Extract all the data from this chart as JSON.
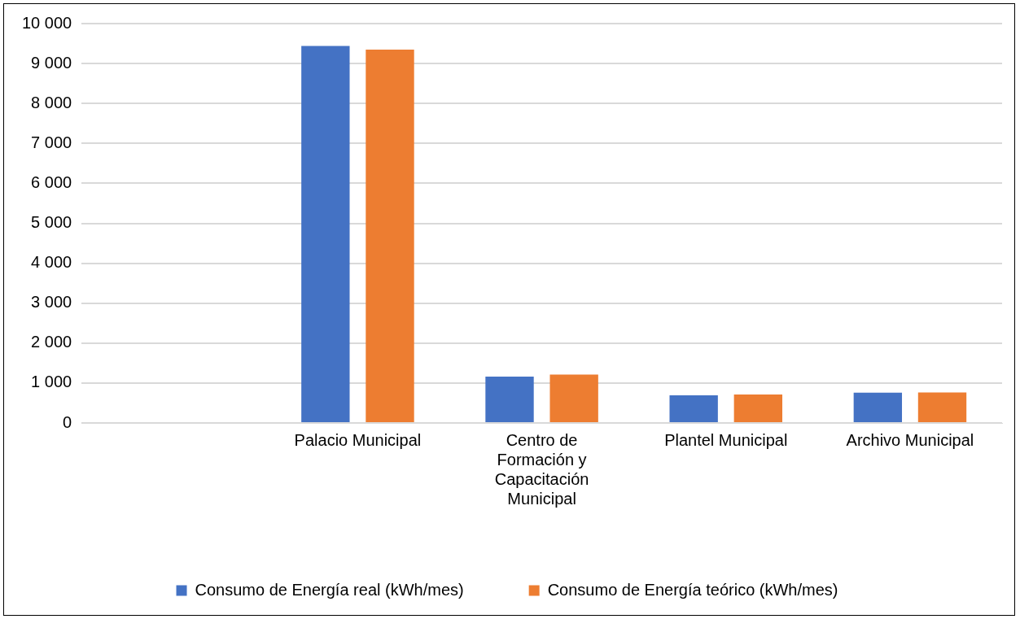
{
  "chart_data": {
    "type": "bar",
    "categories": [
      null,
      "Palacio Municipal",
      "Centro de Formación y Capacitación Municipal",
      "Plantel Municipal",
      "Archivo Municipal"
    ],
    "series": [
      {
        "name": "Consumo de Energía real (kWh/mes)",
        "color": "#4472c4",
        "values": [
          null,
          9440,
          1160,
          690,
          760
        ]
      },
      {
        "name": "Consumo de Energía teórico (kWh/mes)",
        "color": "#ed7d31",
        "values": [
          null,
          9350,
          1210,
          715,
          765
        ]
      }
    ],
    "ylim": [
      0,
      10000
    ],
    "yticks": [
      {
        "value": 0,
        "label": "0"
      },
      {
        "value": 1000,
        "label": "1 000"
      },
      {
        "value": 2000,
        "label": "2 000"
      },
      {
        "value": 3000,
        "label": "3 000"
      },
      {
        "value": 4000,
        "label": "4 000"
      },
      {
        "value": 5000,
        "label": "5 000"
      },
      {
        "value": 6000,
        "label": "6 000"
      },
      {
        "value": 7000,
        "label": "7 000"
      },
      {
        "value": 8000,
        "label": "8 000"
      },
      {
        "value": 9000,
        "label": "9 000"
      },
      {
        "value": 10000,
        "label": "10 000"
      }
    ],
    "grid": "y",
    "legend": "bottom"
  }
}
